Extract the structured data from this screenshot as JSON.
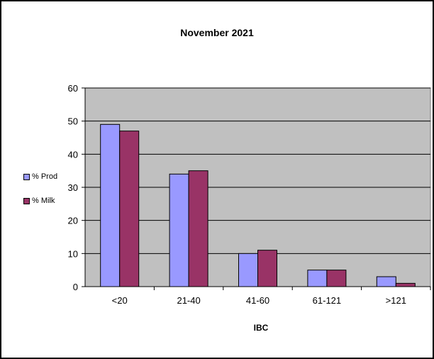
{
  "chart_data": {
    "type": "bar",
    "title": "November 2021",
    "xlabel": "IBC",
    "ylabel": "",
    "categories": [
      "<20",
      "21-40",
      "41-60",
      "61-121",
      ">121"
    ],
    "series": [
      {
        "name": "% Prod",
        "values": [
          49,
          34,
          10,
          5,
          3
        ],
        "color": "#9999ff"
      },
      {
        "name": "% Milk",
        "values": [
          47,
          35,
          11,
          5,
          1
        ],
        "color": "#993366"
      }
    ],
    "ylim": [
      0,
      60
    ],
    "yticks": [
      0,
      10,
      20,
      30,
      40,
      50,
      60
    ],
    "grid": true,
    "plot_background": "#c0c0c0",
    "legend_position": "left"
  }
}
